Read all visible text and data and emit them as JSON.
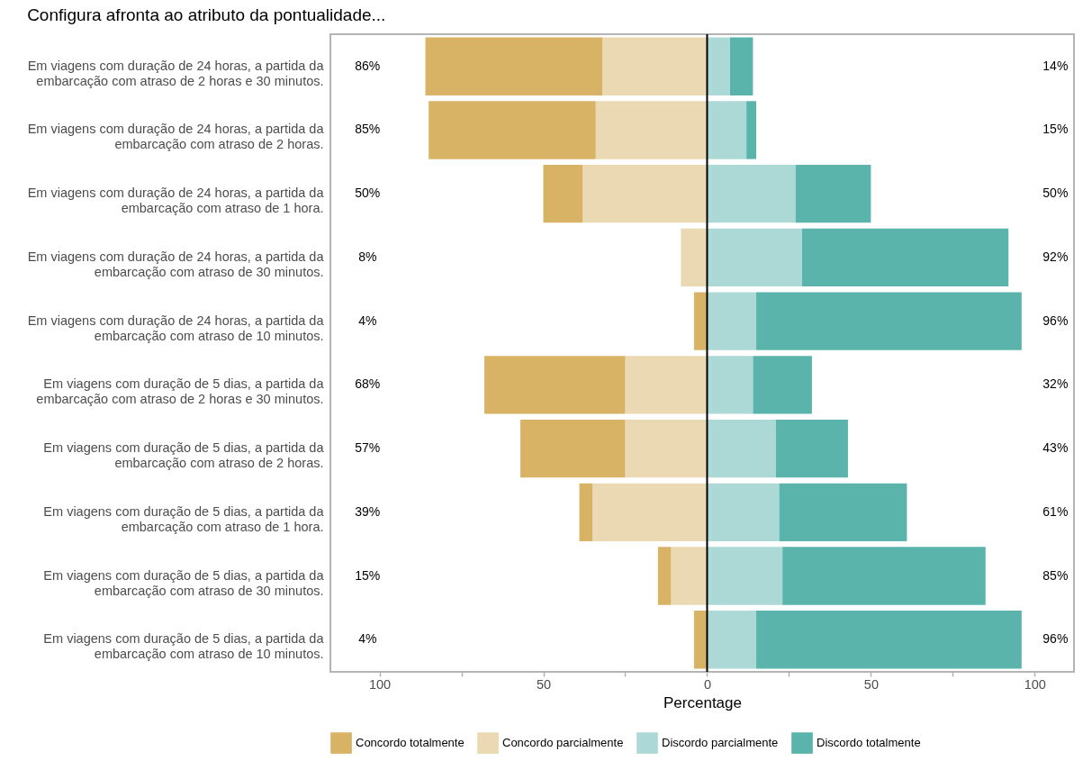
{
  "chart_data": {
    "type": "bar",
    "orientation": "horizontal",
    "stacked": true,
    "title": "Configura afronta ao atributo da pontualidade...",
    "xlabel": "Percentage",
    "categories": [
      "Em viagens com duração de 24 horas, a partida da embarcação com atraso de 2 horas e 30 minutos.",
      "Em viagens com duração de 24 horas, a partida da embarcação com atraso de 2 horas.",
      "Em viagens com duração de 24 horas, a partida da embarcação com atraso de 1 hora.",
      "Em viagens com duração de 24 horas, a partida da embarcação com atraso de 30 minutos.",
      "Em viagens com duração de 24 horas, a partida da embarcação com atraso de 10 minutos.",
      "Em viagens com duração de 5 dias, a partida da embarcação com atraso de 2 horas e 30 minutos.",
      "Em viagens com duração de 5 dias, a partida da embarcação com atraso de 2 horas.",
      "Em viagens com duração de 5 dias, a partida da embarcação com atraso de 1 hora.",
      "Em viagens com duração de 5 dias, a partida da embarcação com atraso de 30 minutos.",
      "Em viagens com duração de 5 dias, a partida da embarcação com atraso de 10 minutos."
    ],
    "series": [
      {
        "name": "Concordo parcialmente",
        "color": "#ead9b2",
        "values": [
          -32,
          -34,
          -38,
          -8,
          0,
          -25,
          -25,
          -35,
          -11,
          0
        ]
      },
      {
        "name": "Concordo totalmente",
        "color": "#d8b365",
        "values": [
          -54,
          -51,
          -12,
          0,
          -4,
          -43,
          -32,
          -4,
          -4,
          -4
        ]
      },
      {
        "name": "Discordo parcialmente",
        "color": "#acd9d5",
        "values": [
          7,
          12,
          27,
          29,
          15,
          14,
          21,
          22,
          23,
          15
        ]
      },
      {
        "name": "Discordo totalmente",
        "color": "#5ab4ac",
        "values": [
          7,
          3,
          23,
          63,
          81,
          18,
          22,
          39,
          62,
          81
        ]
      }
    ],
    "xlim": [
      -115,
      112
    ],
    "xticks": [
      {
        "value": -100,
        "label": "100"
      },
      {
        "value": -75,
        "label": null
      },
      {
        "value": -50,
        "label": "50"
      },
      {
        "value": -25,
        "label": null
      },
      0,
      {
        "value": 25,
        "label": null
      },
      50,
      {
        "value": 75,
        "label": null
      },
      100
    ],
    "ref_lines": [
      {
        "axis": "x",
        "value": 0,
        "color": "#000000"
      }
    ],
    "annotations": [
      "86%",
      "14%",
      "85%",
      "15%",
      "50%",
      "50%",
      "8%",
      "92%",
      "4%",
      "96%",
      "68%",
      "32%",
      "57%",
      "43%",
      "39%",
      "61%",
      "15%",
      "85%",
      "4%",
      "96%"
    ],
    "legend": "bottom"
  }
}
